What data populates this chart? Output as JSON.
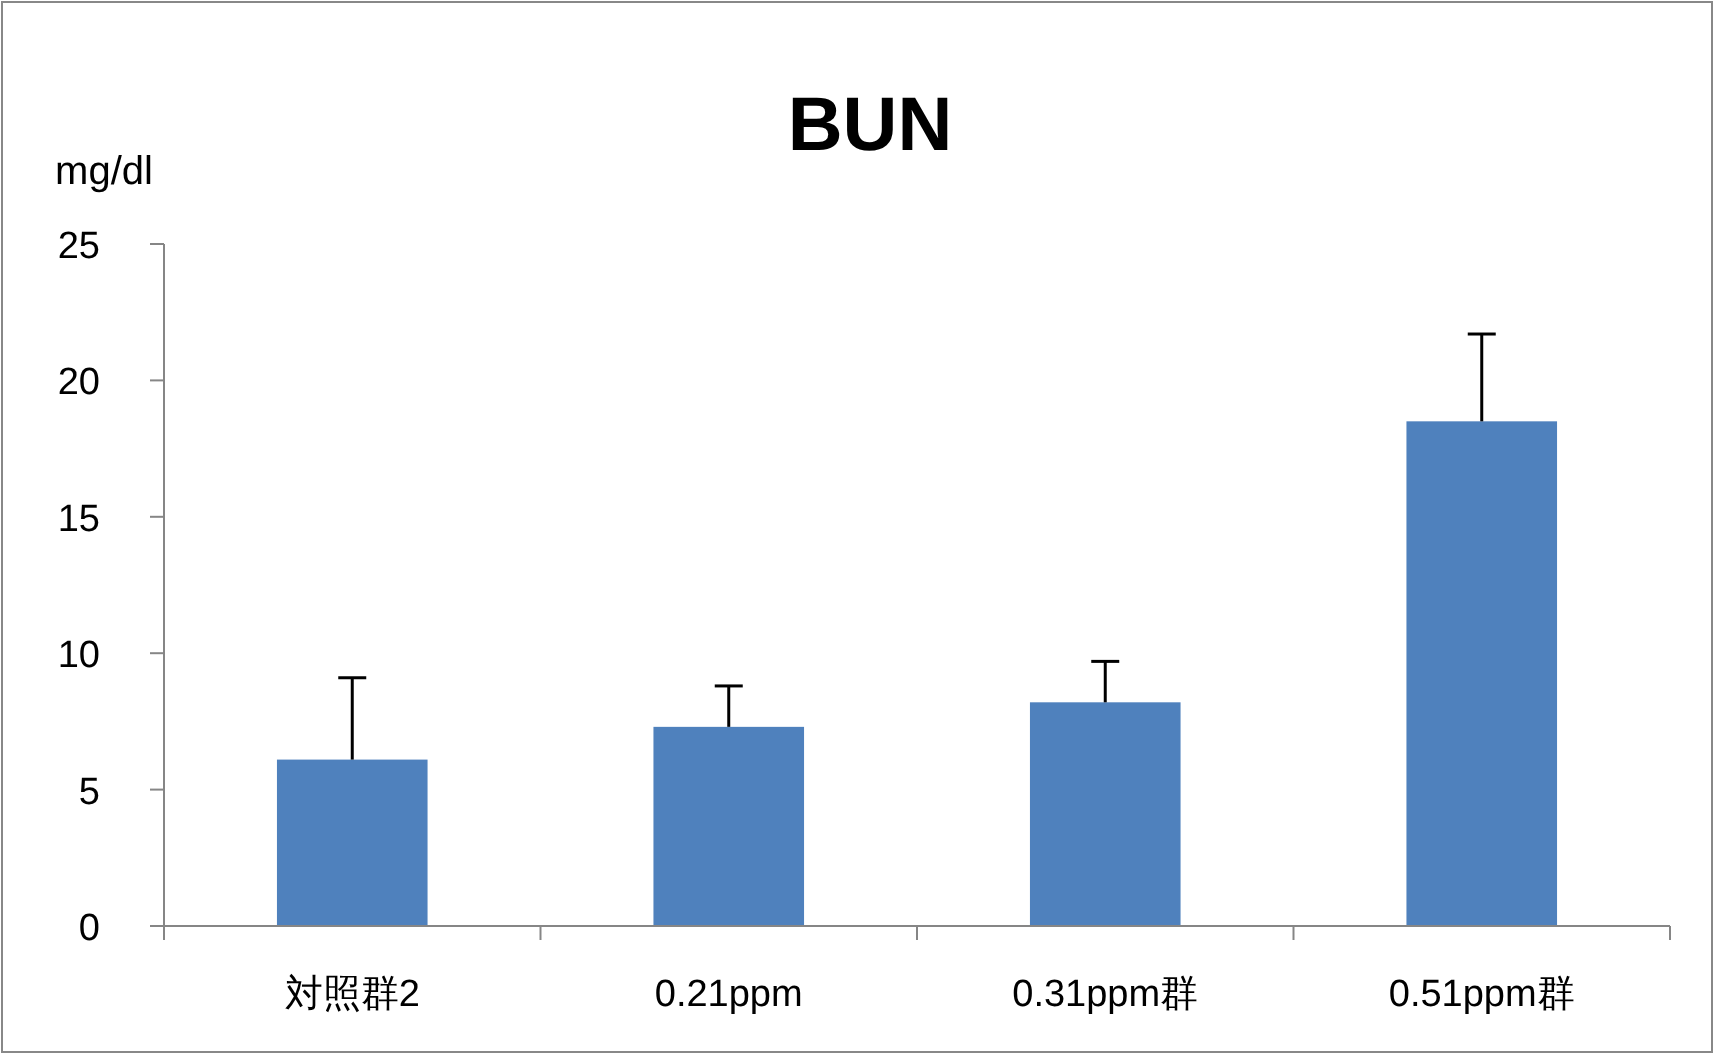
{
  "chart_data": {
    "type": "bar",
    "title": "BUN",
    "ylabel": "mg/dl",
    "categories": [
      "対照群2",
      "0.21ppm",
      "0.31ppm群",
      "0.51ppm群"
    ],
    "values": [
      6.1,
      7.3,
      8.2,
      18.5
    ],
    "errors": [
      [
        6.1,
        9.1
      ],
      [
        7.3,
        8.8
      ],
      [
        8.2,
        9.7
      ],
      [
        18.5,
        21.7
      ]
    ],
    "color": "#4f81bd",
    "ylim": [
      0,
      25
    ],
    "yticks": [
      0,
      5,
      10,
      15,
      20,
      25
    ],
    "grid": false
  }
}
